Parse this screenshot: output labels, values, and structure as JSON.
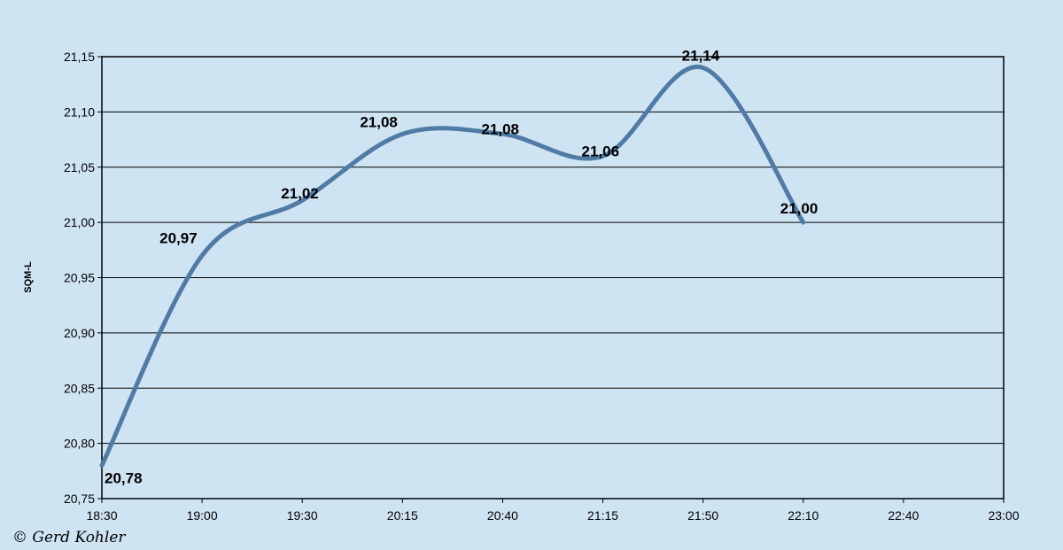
{
  "chart_data": {
    "type": "line",
    "ylabel": "SQM-L",
    "ylim": [
      20.75,
      21.15
    ],
    "yticks": [
      "20,75",
      "20,80",
      "20,85",
      "20,90",
      "20,95",
      "21,00",
      "21,05",
      "21,10",
      "21,15"
    ],
    "xticks": [
      "18:30",
      "19:00",
      "19:30",
      "20:15",
      "20:40",
      "21:15",
      "21:50",
      "22:10",
      "22:40",
      "23:00"
    ],
    "grid": "horizontal",
    "line_color": "#4f7ba5",
    "series": [
      {
        "values": [
          {
            "x": "18:30",
            "y": 20.78,
            "label": "20,78"
          },
          {
            "x": "19:00",
            "y": 20.97,
            "label": "20,97"
          },
          {
            "x": "19:30",
            "y": 21.02,
            "label": "21,02"
          },
          {
            "x": "20:15",
            "y": 21.08,
            "label": "21,08"
          },
          {
            "x": "20:40",
            "y": 21.08,
            "label": "21,08"
          },
          {
            "x": "21:15",
            "y": 21.06,
            "label": "21,06"
          },
          {
            "x": "21:50",
            "y": 21.14,
            "label": "21,14"
          },
          {
            "x": "22:10",
            "y": 21.0,
            "label": "21,00"
          }
        ]
      }
    ]
  },
  "credit": "© Gerd Kohler"
}
